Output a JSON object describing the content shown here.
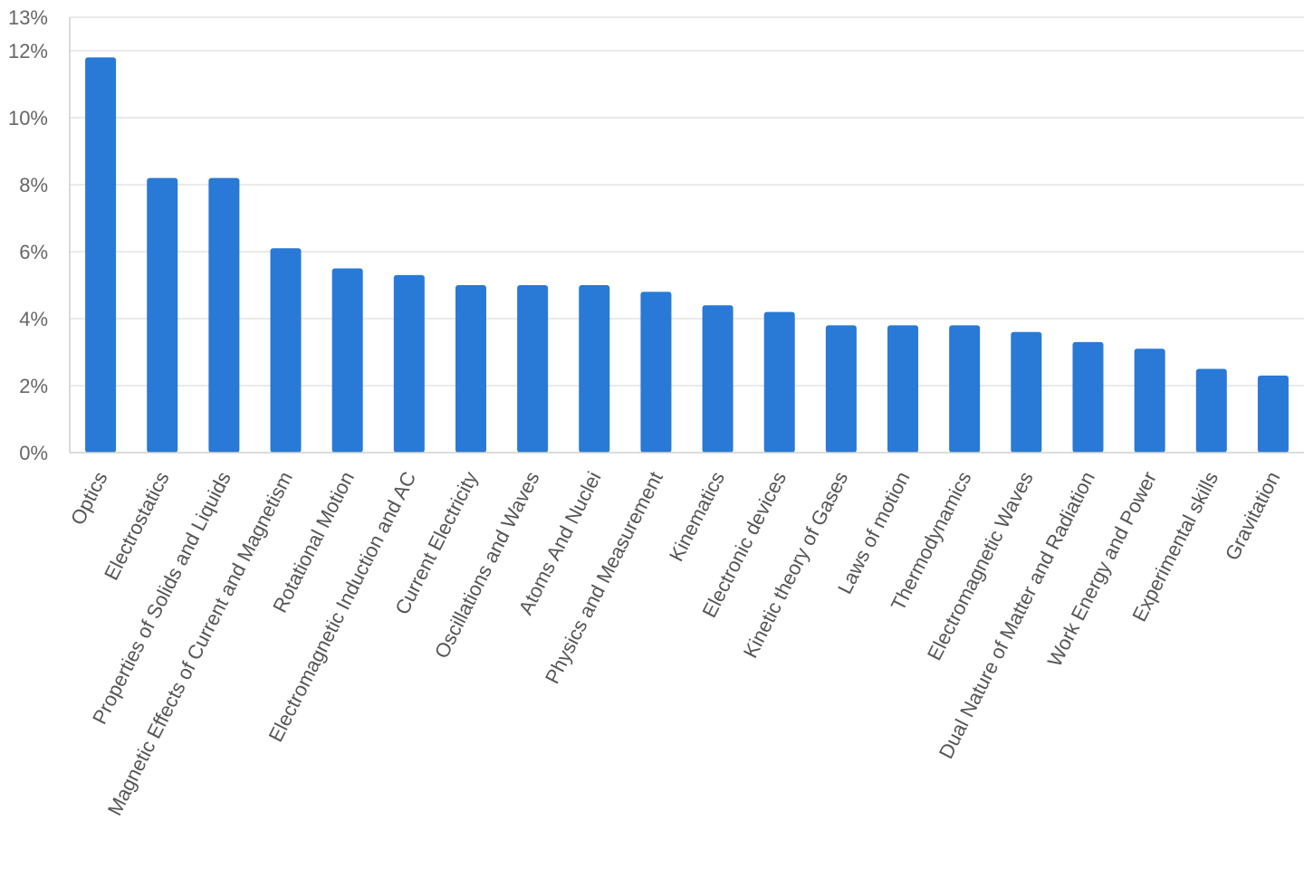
{
  "chart_data": {
    "type": "bar",
    "title": "",
    "xlabel": "",
    "ylabel": "",
    "categories": [
      "Optics",
      "Electrostatics",
      "Properties of Solids and Liquids",
      "Magnetic Effects of Current and Magnetism",
      "Rotational Motion",
      "Electromagnetic Induction and AC",
      "Current Electricity",
      "Oscillations and Waves",
      "Atoms And Nuclei",
      "Physics and Measurement",
      "Kinematics",
      "Electronic devices",
      "Kinetic theory of Gases",
      "Laws of motion",
      "Thermodynamics",
      "Electromagnetic Waves",
      "Dual Nature of Matter and Radiation",
      "Work Energy and Power",
      "Experimental skills",
      "Gravitation"
    ],
    "values": [
      11.8,
      8.2,
      8.2,
      6.1,
      5.5,
      5.3,
      5.0,
      5.0,
      5.0,
      4.8,
      4.4,
      4.2,
      3.8,
      3.8,
      3.8,
      3.6,
      3.3,
      3.1,
      2.5,
      2.3
    ],
    "ylim": [
      0,
      13
    ],
    "yticks": [
      0,
      2,
      4,
      6,
      8,
      10,
      12,
      13
    ],
    "ytick_labels": [
      "0%",
      "2%",
      "4%",
      "6%",
      "8%",
      "10%",
      "12%",
      "13%"
    ],
    "grid": true,
    "legend": "none",
    "bar_color": "#2979d6"
  }
}
